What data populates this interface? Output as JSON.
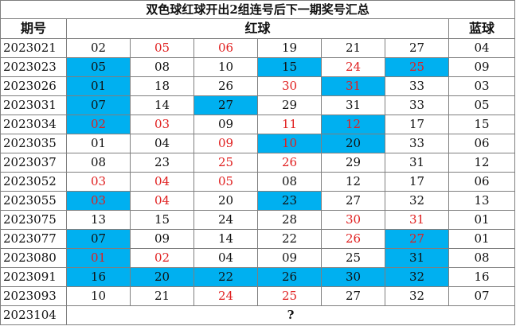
{
  "title": "双色球红球开出2组连号后下一期奖号汇总",
  "headers": {
    "issue": "期号",
    "red": "红球",
    "blue": "蓝球"
  },
  "rows": [
    {
      "issue": "2023021",
      "red": [
        {
          "v": "02"
        },
        {
          "v": "05",
          "r": true
        },
        {
          "v": "06",
          "r": true
        },
        {
          "v": "19"
        },
        {
          "v": "21"
        },
        {
          "v": "27"
        }
      ],
      "blue": "04"
    },
    {
      "issue": "2023023",
      "red": [
        {
          "v": "05",
          "h": true
        },
        {
          "v": "08"
        },
        {
          "v": "10"
        },
        {
          "v": "15",
          "h": true
        },
        {
          "v": "24",
          "r": true
        },
        {
          "v": "25",
          "r": true,
          "h": true
        }
      ],
      "blue": "09"
    },
    {
      "issue": "2023026",
      "red": [
        {
          "v": "01",
          "h": true
        },
        {
          "v": "18"
        },
        {
          "v": "26"
        },
        {
          "v": "30",
          "r": true
        },
        {
          "v": "31",
          "r": true,
          "h": true
        },
        {
          "v": "33"
        }
      ],
      "blue": "03"
    },
    {
      "issue": "2023031",
      "red": [
        {
          "v": "07",
          "h": true
        },
        {
          "v": "14"
        },
        {
          "v": "27",
          "h": true
        },
        {
          "v": "29"
        },
        {
          "v": "31"
        },
        {
          "v": "33"
        }
      ],
      "blue": "05"
    },
    {
      "issue": "2023034",
      "red": [
        {
          "v": "02",
          "r": true,
          "h": true
        },
        {
          "v": "03",
          "r": true
        },
        {
          "v": "09"
        },
        {
          "v": "11",
          "r": true
        },
        {
          "v": "12",
          "r": true,
          "h": true
        },
        {
          "v": "17"
        }
      ],
      "blue": "15"
    },
    {
      "issue": "2023035",
      "red": [
        {
          "v": "01"
        },
        {
          "v": "04"
        },
        {
          "v": "09",
          "r": true
        },
        {
          "v": "10",
          "r": true,
          "h": true
        },
        {
          "v": "20",
          "h": true
        },
        {
          "v": "33"
        }
      ],
      "blue": "06"
    },
    {
      "issue": "2023037",
      "red": [
        {
          "v": "08"
        },
        {
          "v": "23"
        },
        {
          "v": "25",
          "r": true
        },
        {
          "v": "26",
          "r": true
        },
        {
          "v": "29"
        },
        {
          "v": "31"
        }
      ],
      "blue": "12"
    },
    {
      "issue": "2023052",
      "red": [
        {
          "v": "03",
          "r": true
        },
        {
          "v": "04",
          "r": true
        },
        {
          "v": "05",
          "r": true
        },
        {
          "v": "08"
        },
        {
          "v": "12"
        },
        {
          "v": "17"
        }
      ],
      "blue": "06"
    },
    {
      "issue": "2023055",
      "red": [
        {
          "v": "03",
          "r": true,
          "h": true
        },
        {
          "v": "04",
          "r": true
        },
        {
          "v": "20"
        },
        {
          "v": "23",
          "h": true
        },
        {
          "v": "27"
        },
        {
          "v": "32"
        }
      ],
      "blue": "13"
    },
    {
      "issue": "2023075",
      "red": [
        {
          "v": "13"
        },
        {
          "v": "15"
        },
        {
          "v": "24"
        },
        {
          "v": "28"
        },
        {
          "v": "30",
          "r": true
        },
        {
          "v": "31",
          "r": true
        }
      ],
      "blue": "01"
    },
    {
      "issue": "2023077",
      "red": [
        {
          "v": "07",
          "h": true
        },
        {
          "v": "09"
        },
        {
          "v": "14"
        },
        {
          "v": "22"
        },
        {
          "v": "26",
          "r": true
        },
        {
          "v": "27",
          "r": true,
          "h": true
        }
      ],
      "blue": "01"
    },
    {
      "issue": "2023080",
      "red": [
        {
          "v": "01",
          "r": true,
          "h": true
        },
        {
          "v": "02",
          "r": true
        },
        {
          "v": "04"
        },
        {
          "v": "09"
        },
        {
          "v": "25"
        },
        {
          "v": "31",
          "h": true
        }
      ],
      "blue": "08"
    },
    {
      "issue": "2023091",
      "red": [
        {
          "v": "16",
          "h": true
        },
        {
          "v": "20",
          "h": true
        },
        {
          "v": "22",
          "h": true
        },
        {
          "v": "26",
          "h": true
        },
        {
          "v": "30",
          "h": true
        },
        {
          "v": "32",
          "h": true
        }
      ],
      "blue": "16"
    },
    {
      "issue": "2023093",
      "red": [
        {
          "v": "10"
        },
        {
          "v": "21"
        },
        {
          "v": "24",
          "r": true
        },
        {
          "v": "25",
          "r": true
        },
        {
          "v": "27"
        },
        {
          "v": "32"
        }
      ],
      "blue": "07"
    }
  ],
  "last": {
    "issue": "2023104",
    "mark": "?"
  }
}
